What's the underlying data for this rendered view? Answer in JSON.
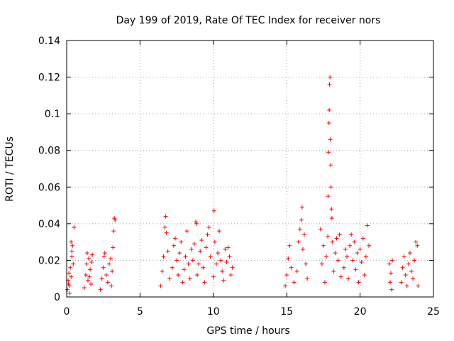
{
  "chart_data": {
    "type": "scatter",
    "title": "Day 199 of 2019, Rate Of TEC Index for receiver nors",
    "xlabel": "GPS time / hours",
    "ylabel": "ROTI / TECUs",
    "xlim": [
      0,
      25
    ],
    "ylim": [
      0,
      0.14
    ],
    "x_ticks": [
      "0",
      "5",
      "10",
      "15",
      "20",
      "25"
    ],
    "y_ticks": [
      "0",
      "0.02",
      "0.04",
      "0.06",
      "0.08",
      "0.1",
      "0.12",
      "0.14"
    ],
    "grid": true,
    "marker": "+",
    "color": "#ff0000",
    "series": [
      {
        "name": "ROTI",
        "points": [
          [
            0.05,
            0.004
          ],
          [
            0.1,
            0.009
          ],
          [
            0.15,
            0.013
          ],
          [
            0.2,
            0.006
          ],
          [
            0.25,
            0.016
          ],
          [
            0.3,
            0.011
          ],
          [
            0.35,
            0.022
          ],
          [
            0.4,
            0.028
          ],
          [
            0.45,
            0.018
          ],
          [
            0.3,
            0.03
          ],
          [
            0.35,
            0.025
          ],
          [
            0.2,
            0.002
          ],
          [
            0.12,
            0.007
          ],
          [
            0.5,
            0.038
          ],
          [
            1.2,
            0.005
          ],
          [
            1.3,
            0.012
          ],
          [
            1.35,
            0.018
          ],
          [
            1.4,
            0.024
          ],
          [
            1.45,
            0.009
          ],
          [
            1.5,
            0.021
          ],
          [
            1.6,
            0.015
          ],
          [
            1.65,
            0.007
          ],
          [
            1.7,
            0.019
          ],
          [
            1.75,
            0.023
          ],
          [
            1.55,
            0.011
          ],
          [
            2.3,
            0.004
          ],
          [
            2.4,
            0.01
          ],
          [
            2.5,
            0.016
          ],
          [
            2.55,
            0.022
          ],
          [
            2.6,
            0.024
          ],
          [
            2.7,
            0.012
          ],
          [
            2.8,
            0.008
          ],
          [
            2.9,
            0.018
          ],
          [
            3.0,
            0.021
          ],
          [
            3.1,
            0.014
          ],
          [
            3.15,
            0.027
          ],
          [
            3.2,
            0.036
          ],
          [
            3.25,
            0.043
          ],
          [
            3.3,
            0.042
          ],
          [
            3.05,
            0.006
          ],
          [
            6.4,
            0.006
          ],
          [
            6.5,
            0.014
          ],
          [
            6.6,
            0.022
          ],
          [
            6.7,
            0.038
          ],
          [
            6.75,
            0.044
          ],
          [
            6.8,
            0.035
          ],
          [
            6.9,
            0.025
          ],
          [
            7.0,
            0.01
          ],
          [
            7.2,
            0.016
          ],
          [
            7.3,
            0.028
          ],
          [
            7.4,
            0.032
          ],
          [
            7.5,
            0.02
          ],
          [
            7.6,
            0.012
          ],
          [
            7.7,
            0.024
          ],
          [
            7.8,
            0.03
          ],
          [
            7.9,
            0.008
          ],
          [
            8.0,
            0.015
          ],
          [
            8.1,
            0.022
          ],
          [
            8.2,
            0.036
          ],
          [
            8.3,
            0.018
          ],
          [
            8.4,
            0.01
          ],
          [
            8.5,
            0.026
          ],
          [
            8.6,
            0.02
          ],
          [
            8.7,
            0.029
          ],
          [
            8.8,
            0.041
          ],
          [
            8.85,
            0.04
          ],
          [
            8.9,
            0.012
          ],
          [
            9.0,
            0.018
          ],
          [
            9.1,
            0.025
          ],
          [
            9.2,
            0.031
          ],
          [
            9.3,
            0.016
          ],
          [
            9.4,
            0.008
          ],
          [
            9.5,
            0.027
          ],
          [
            9.6,
            0.034
          ],
          [
            9.7,
            0.038
          ],
          [
            9.8,
            0.022
          ],
          [
            10.0,
            0.011
          ],
          [
            10.05,
            0.047
          ],
          [
            10.1,
            0.03
          ],
          [
            10.2,
            0.018
          ],
          [
            10.3,
            0.024
          ],
          [
            10.4,
            0.036
          ],
          [
            10.5,
            0.02
          ],
          [
            10.6,
            0.014
          ],
          [
            10.7,
            0.009
          ],
          [
            10.8,
            0.026
          ],
          [
            10.9,
            0.019
          ],
          [
            11.0,
            0.027
          ],
          [
            11.1,
            0.022
          ],
          [
            11.2,
            0.012
          ],
          [
            11.3,
            0.016
          ],
          [
            14.9,
            0.006
          ],
          [
            15.0,
            0.012
          ],
          [
            15.1,
            0.021
          ],
          [
            15.2,
            0.028
          ],
          [
            15.3,
            0.016
          ],
          [
            15.5,
            0.008
          ],
          [
            15.7,
            0.014
          ],
          [
            15.8,
            0.03
          ],
          [
            15.9,
            0.037
          ],
          [
            16.0,
            0.042
          ],
          [
            16.05,
            0.049
          ],
          [
            16.1,
            0.026
          ],
          [
            16.2,
            0.034
          ],
          [
            16.3,
            0.018
          ],
          [
            16.4,
            0.01
          ],
          [
            17.3,
            0.037
          ],
          [
            17.4,
            0.018
          ],
          [
            17.5,
            0.028
          ],
          [
            17.6,
            0.008
          ],
          [
            17.7,
            0.022
          ],
          [
            17.8,
            0.033
          ],
          [
            17.82,
            0.055
          ],
          [
            17.85,
            0.079
          ],
          [
            17.88,
            0.095
          ],
          [
            17.9,
            0.102
          ],
          [
            17.92,
            0.116
          ],
          [
            17.95,
            0.12
          ],
          [
            17.97,
            0.086
          ],
          [
            18.0,
            0.072
          ],
          [
            18.02,
            0.06
          ],
          [
            18.05,
            0.048
          ],
          [
            18.08,
            0.043
          ],
          [
            18.1,
            0.03
          ],
          [
            18.2,
            0.014
          ],
          [
            18.3,
            0.024
          ],
          [
            18.4,
            0.032
          ],
          [
            18.5,
            0.02
          ],
          [
            18.6,
            0.034
          ],
          [
            18.7,
            0.011
          ],
          [
            18.9,
            0.016
          ],
          [
            19.0,
            0.026
          ],
          [
            19.1,
            0.022
          ],
          [
            19.2,
            0.01
          ],
          [
            19.3,
            0.028
          ],
          [
            19.4,
            0.034
          ],
          [
            19.5,
            0.02
          ],
          [
            19.6,
            0.03
          ],
          [
            19.7,
            0.015
          ],
          [
            19.8,
            0.024
          ],
          [
            19.9,
            0.008
          ],
          [
            20.0,
            0.026
          ],
          [
            20.1,
            0.019
          ],
          [
            20.2,
            0.032
          ],
          [
            20.3,
            0.012
          ],
          [
            20.4,
            0.022
          ],
          [
            20.5,
            0.039
          ],
          [
            20.6,
            0.028
          ],
          [
            22.0,
            0.018
          ],
          [
            22.05,
            0.008
          ],
          [
            22.1,
            0.013
          ],
          [
            22.15,
            0.004
          ],
          [
            22.2,
            0.02
          ],
          [
            22.8,
            0.008
          ],
          [
            22.9,
            0.016
          ],
          [
            23.0,
            0.022
          ],
          [
            23.1,
            0.012
          ],
          [
            23.2,
            0.006
          ],
          [
            23.3,
            0.018
          ],
          [
            23.4,
            0.024
          ],
          [
            23.5,
            0.014
          ],
          [
            23.6,
            0.01
          ],
          [
            23.7,
            0.02
          ],
          [
            23.8,
            0.03
          ],
          [
            23.9,
            0.028
          ],
          [
            23.95,
            0.006
          ]
        ]
      }
    ]
  }
}
